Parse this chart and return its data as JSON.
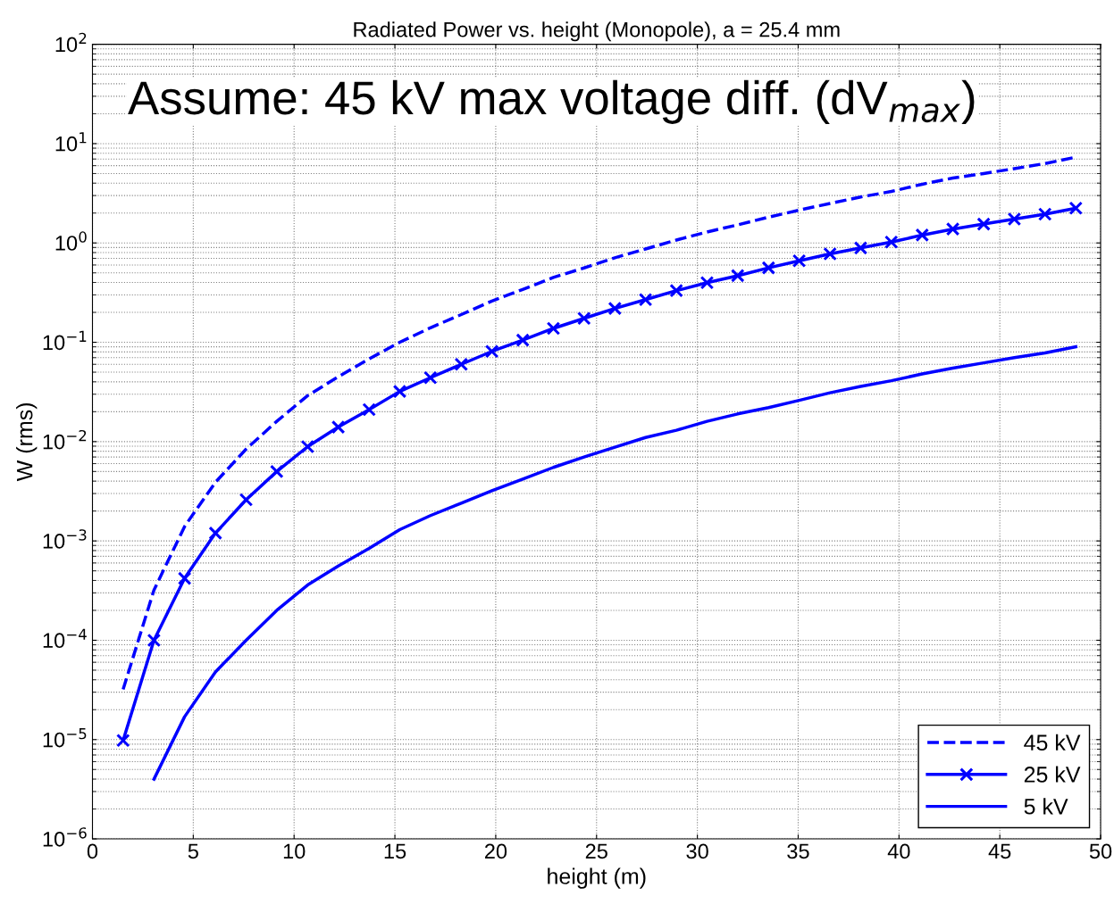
{
  "chart_data": {
    "type": "line",
    "title": "Radiated Power vs. height (Monopole), a = 25.4 mm",
    "xlabel": "height (m)",
    "ylabel": "W (rms)",
    "annotations": [
      "Assume: 45 kV max voltage diff. (dV$_{max}$)"
    ],
    "x": [
      1.52,
      3.05,
      4.57,
      6.1,
      7.62,
      9.14,
      10.67,
      12.19,
      13.72,
      15.24,
      16.76,
      18.29,
      19.81,
      21.34,
      22.86,
      24.38,
      25.91,
      27.43,
      28.96,
      30.48,
      32.0,
      33.53,
      35.05,
      36.58,
      38.1,
      39.62,
      41.15,
      42.67,
      44.2,
      45.72,
      47.24,
      48.77
    ],
    "series": [
      {
        "name": "45 kV",
        "color": "#0000ff",
        "line_style": "dashed",
        "marker": "none",
        "values": [
          3.2e-05,
          0.00032,
          0.0014,
          0.0039,
          0.0084,
          0.016,
          0.029,
          0.045,
          0.068,
          0.1,
          0.14,
          0.19,
          0.26,
          0.34,
          0.45,
          0.56,
          0.71,
          0.87,
          1.07,
          1.29,
          1.52,
          1.82,
          2.14,
          2.5,
          2.9,
          3.3,
          3.9,
          4.5,
          5.0,
          5.6,
          6.3,
          7.3
        ]
      },
      {
        "name": "25 kV",
        "color": "#0000ff",
        "line_style": "solid",
        "marker": "cross",
        "values": [
          9.8e-06,
          0.0001,
          0.00042,
          0.0012,
          0.0026,
          0.005,
          0.0089,
          0.014,
          0.021,
          0.032,
          0.044,
          0.06,
          0.081,
          0.105,
          0.138,
          0.174,
          0.219,
          0.269,
          0.331,
          0.398,
          0.468,
          0.562,
          0.661,
          0.776,
          0.891,
          1.02,
          1.2,
          1.38,
          1.55,
          1.74,
          1.95,
          2.24
        ]
      },
      {
        "name": "5 kV",
        "color": "#0000ff",
        "line_style": "solid",
        "marker": "none",
        "values": [
          null,
          4e-06,
          1.7e-05,
          4.8e-05,
          0.0001,
          0.0002,
          0.00036,
          0.00056,
          0.00084,
          0.0013,
          0.0018,
          0.0024,
          0.0032,
          0.0042,
          0.0055,
          0.007,
          0.0088,
          0.011,
          0.013,
          0.016,
          0.019,
          0.022,
          0.026,
          0.031,
          0.036,
          0.041,
          0.048,
          0.055,
          0.062,
          0.07,
          0.078,
          0.09
        ]
      }
    ],
    "log": "y",
    "grid": true,
    "legend": "bottom right",
    "xlim": [
      0,
      50
    ],
    "xticks": [
      0,
      5,
      10,
      15,
      20,
      25,
      30,
      35,
      40,
      45,
      50
    ],
    "ylim": [
      1e-06,
      100
    ],
    "yticks": [
      {
        "value": 1e-06,
        "label": "10$^{−6}$"
      },
      {
        "value": 1e-05,
        "label": "10$^{−5}$"
      },
      {
        "value": 0.0001,
        "label": "10$^{−4}$"
      },
      {
        "value": 0.001,
        "label": "10$^{−3}$"
      },
      {
        "value": 0.01,
        "label": "10$^{−2}$"
      },
      {
        "value": 0.1,
        "label": "10$^{−1}$"
      },
      {
        "value": 1,
        "label": "10$^{0}$"
      },
      {
        "value": 10,
        "label": "10$^{1}$"
      },
      {
        "value": 100,
        "label": "10$^{2}$"
      }
    ]
  }
}
